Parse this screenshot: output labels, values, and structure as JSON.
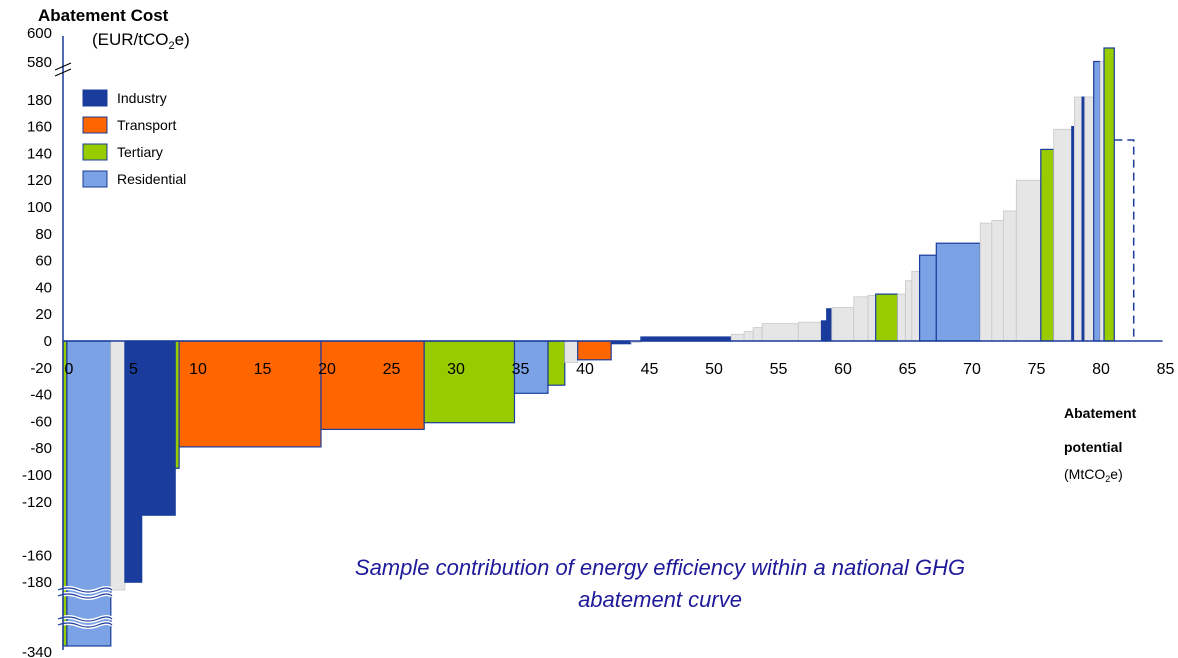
{
  "chart_data": {
    "type": "bar",
    "subtype": "marginal abatement cost curve (variable-width bars)",
    "title": "Abatement Cost",
    "ylabel_unit": {
      "pre": "(EUR/tCO",
      "sub": "2",
      "post": "e)"
    },
    "xlabel_line1": "Abatement",
    "xlabel_line2": "potential",
    "xlabel_unit": {
      "pre": "(MtCO",
      "sub": "2",
      "post": "e)"
    },
    "caption": "Sample contribution of energy efficiency within a national GHG abatement curve",
    "xlim": [
      0,
      85
    ],
    "ylim": [
      -340,
      600
    ],
    "y_axis_break_low": [
      -340,
      -180
    ],
    "y_axis_break_high": [
      180,
      580
    ],
    "x_ticks": [
      "0",
      "5",
      "10",
      "15",
      "20",
      "25",
      "30",
      "35",
      "40",
      "45",
      "50",
      "55",
      "60",
      "65",
      "70",
      "75",
      "80",
      "85"
    ],
    "y_ticks": [
      "600",
      "580",
      "180",
      "160",
      "140",
      "120",
      "100",
      "80",
      "60",
      "40",
      "20",
      "0",
      "-20",
      "-40",
      "-60",
      "-80",
      "-100",
      "-120",
      "-160",
      "-180",
      "-340"
    ],
    "legend": [
      {
        "key": "industry",
        "label": "Industry",
        "color": "#1a3c9c"
      },
      {
        "key": "transport",
        "label": "Transport",
        "color": "#ff6600"
      },
      {
        "key": "tertiary",
        "label": "Tertiary",
        "color": "#99cc00"
      },
      {
        "key": "residential",
        "label": "Residential",
        "color": "#7aa2e4"
      }
    ],
    "other_color": "#e6e6e6",
    "outline_color": "#1a3c9c",
    "bars": [
      {
        "x0": 0,
        "x1": 0.3,
        "value": -340,
        "sector": "tertiary"
      },
      {
        "x0": 0.3,
        "x1": 3.7,
        "value": -340,
        "sector": "residential"
      },
      {
        "x0": 3.7,
        "x1": 4.8,
        "value": -200,
        "sector": "other"
      },
      {
        "x0": 4.8,
        "x1": 6.1,
        "value": -180,
        "sector": "industry"
      },
      {
        "x0": 6.1,
        "x1": 8.7,
        "value": -130,
        "sector": "industry"
      },
      {
        "x0": 8.7,
        "x1": 9.0,
        "value": -95,
        "sector": "tertiary"
      },
      {
        "x0": 9.0,
        "x1": 20.0,
        "value": -79,
        "sector": "transport"
      },
      {
        "x0": 20.0,
        "x1": 28.0,
        "value": -66,
        "sector": "transport"
      },
      {
        "x0": 28.0,
        "x1": 35.0,
        "value": -61,
        "sector": "tertiary"
      },
      {
        "x0": 35.0,
        "x1": 37.6,
        "value": -39,
        "sector": "residential"
      },
      {
        "x0": 37.6,
        "x1": 38.9,
        "value": -33,
        "sector": "tertiary"
      },
      {
        "x0": 38.9,
        "x1": 39.9,
        "value": -16,
        "sector": "other"
      },
      {
        "x0": 39.9,
        "x1": 42.5,
        "value": -14,
        "sector": "transport"
      },
      {
        "x0": 42.5,
        "x1": 44.0,
        "value": -2,
        "sector": "industry"
      },
      {
        "x0": 44.0,
        "x1": 44.8,
        "value": -1,
        "sector": "other"
      },
      {
        "x0": 44.8,
        "x1": 51.8,
        "value": 3,
        "sector": "industry"
      },
      {
        "x0": 51.8,
        "x1": 52.8,
        "value": 5,
        "sector": "other"
      },
      {
        "x0": 52.8,
        "x1": 53.5,
        "value": 7,
        "sector": "other"
      },
      {
        "x0": 53.5,
        "x1": 54.2,
        "value": 10,
        "sector": "other"
      },
      {
        "x0": 54.2,
        "x1": 57.0,
        "value": 13,
        "sector": "other"
      },
      {
        "x0": 57.0,
        "x1": 58.8,
        "value": 14,
        "sector": "other"
      },
      {
        "x0": 58.8,
        "x1": 59.2,
        "value": 15,
        "sector": "industry"
      },
      {
        "x0": 59.2,
        "x1": 59.6,
        "value": 24,
        "sector": "industry"
      },
      {
        "x0": 59.6,
        "x1": 61.3,
        "value": 25,
        "sector": "other"
      },
      {
        "x0": 61.3,
        "x1": 62.4,
        "value": 33,
        "sector": "other"
      },
      {
        "x0": 62.4,
        "x1": 63.0,
        "value": 34,
        "sector": "other"
      },
      {
        "x0": 63.0,
        "x1": 64.7,
        "value": 35,
        "sector": "tertiary"
      },
      {
        "x0": 64.7,
        "x1": 65.3,
        "value": 35,
        "sector": "other"
      },
      {
        "x0": 65.3,
        "x1": 65.8,
        "value": 45,
        "sector": "other"
      },
      {
        "x0": 65.8,
        "x1": 66.4,
        "value": 52,
        "sector": "other"
      },
      {
        "x0": 66.4,
        "x1": 67.7,
        "value": 64,
        "sector": "residential"
      },
      {
        "x0": 67.7,
        "x1": 71.1,
        "value": 73,
        "sector": "residential"
      },
      {
        "x0": 71.1,
        "x1": 72.0,
        "value": 88,
        "sector": "other"
      },
      {
        "x0": 72.0,
        "x1": 72.9,
        "value": 90,
        "sector": "other"
      },
      {
        "x0": 72.9,
        "x1": 73.9,
        "value": 97,
        "sector": "other"
      },
      {
        "x0": 73.9,
        "x1": 75.8,
        "value": 120,
        "sector": "other"
      },
      {
        "x0": 75.8,
        "x1": 76.8,
        "value": 143,
        "sector": "tertiary"
      },
      {
        "x0": 76.8,
        "x1": 78.2,
        "value": 158,
        "sector": "other"
      },
      {
        "x0": 78.2,
        "x1": 78.4,
        "value": 160,
        "sector": "industry"
      },
      {
        "x0": 78.4,
        "x1": 79.0,
        "value": 190,
        "sector": "other"
      },
      {
        "x0": 79.0,
        "x1": 79.2,
        "value": 190,
        "sector": "industry"
      },
      {
        "x0": 79.2,
        "x1": 79.9,
        "value": 192,
        "sector": "other"
      },
      {
        "x0": 79.9,
        "x1": 80.4,
        "value": 581,
        "sector": "residential"
      },
      {
        "x0": 80.4,
        "x1": 80.7,
        "value": 581,
        "sector": "other"
      },
      {
        "x0": 80.7,
        "x1": 81.5,
        "value": 590,
        "sector": "tertiary"
      }
    ],
    "dashed_outline": {
      "x0": 81.5,
      "x1": 83.0,
      "value": 150
    }
  }
}
